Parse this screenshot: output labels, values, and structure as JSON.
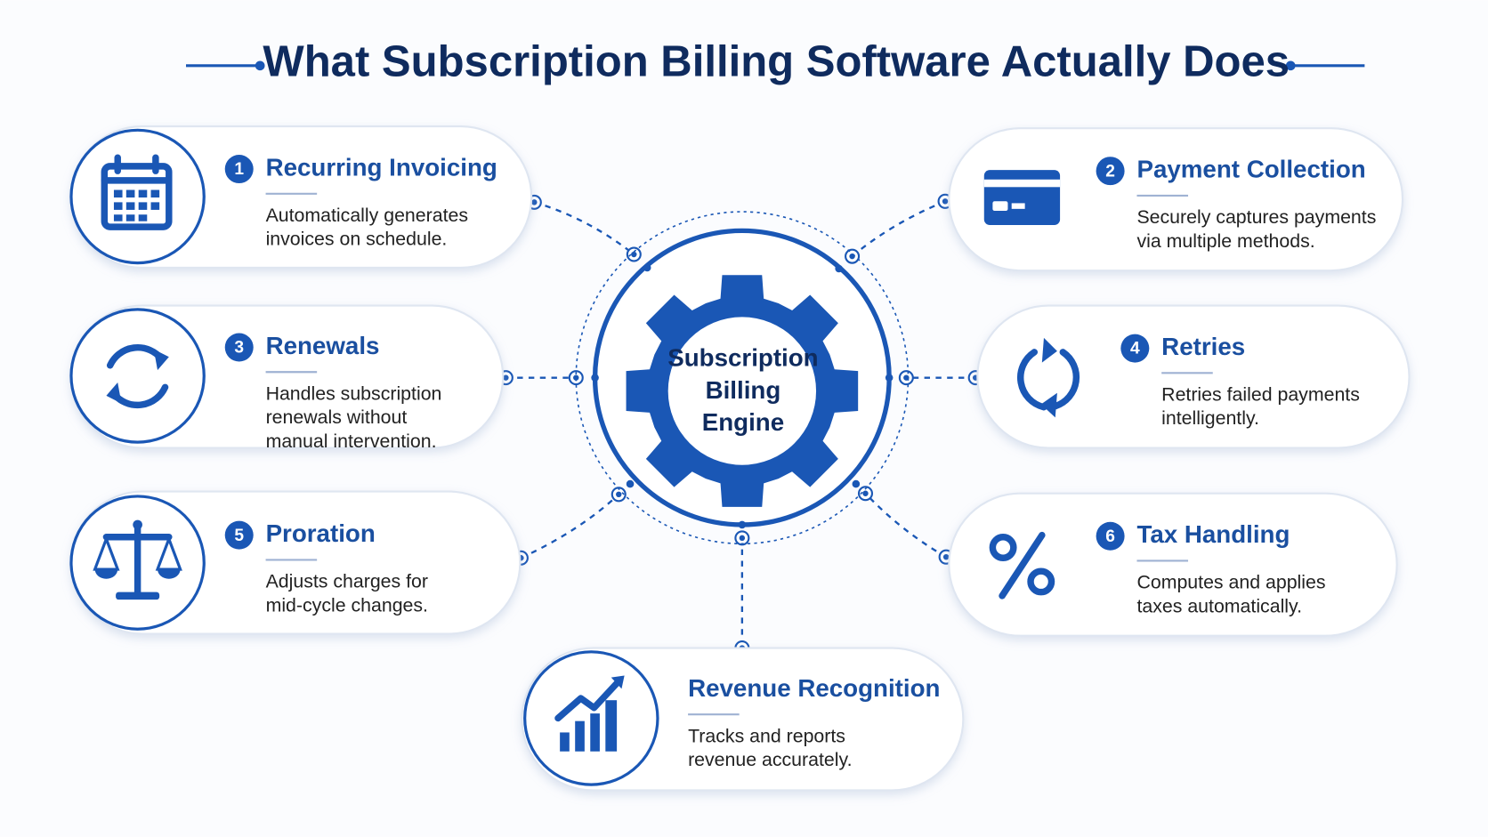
{
  "title": "What Subscription Billing Software Actually Does",
  "center": {
    "lines": [
      "Subscription",
      "Billing",
      "Engine"
    ]
  },
  "nodes": [
    {
      "number": "1",
      "title": "Recurring Invoicing",
      "description": [
        "Automatically generates",
        "invoices on schedule."
      ]
    },
    {
      "number": "2",
      "title": "Payment Collection",
      "description": [
        "Securely captures payments",
        "via multiple methods."
      ]
    },
    {
      "number": "3",
      "title": "Renewals",
      "description": [
        "Handles subscription",
        "renewals without",
        "manual intervention."
      ]
    },
    {
      "number": "4",
      "title": "Retries",
      "description": [
        "Retries failed payments",
        "intelligently."
      ]
    },
    {
      "number": "5",
      "title": "Proration",
      "description": [
        "Adjusts charges for",
        "mid-cycle changes."
      ]
    },
    {
      "number": "6",
      "title": "Tax Handling",
      "description": [
        "Computes and applies",
        "taxes automatically."
      ]
    },
    {
      "title": "Revenue Recognition",
      "description": [
        "Tracks and reports",
        "revenue accurately."
      ]
    }
  ]
}
